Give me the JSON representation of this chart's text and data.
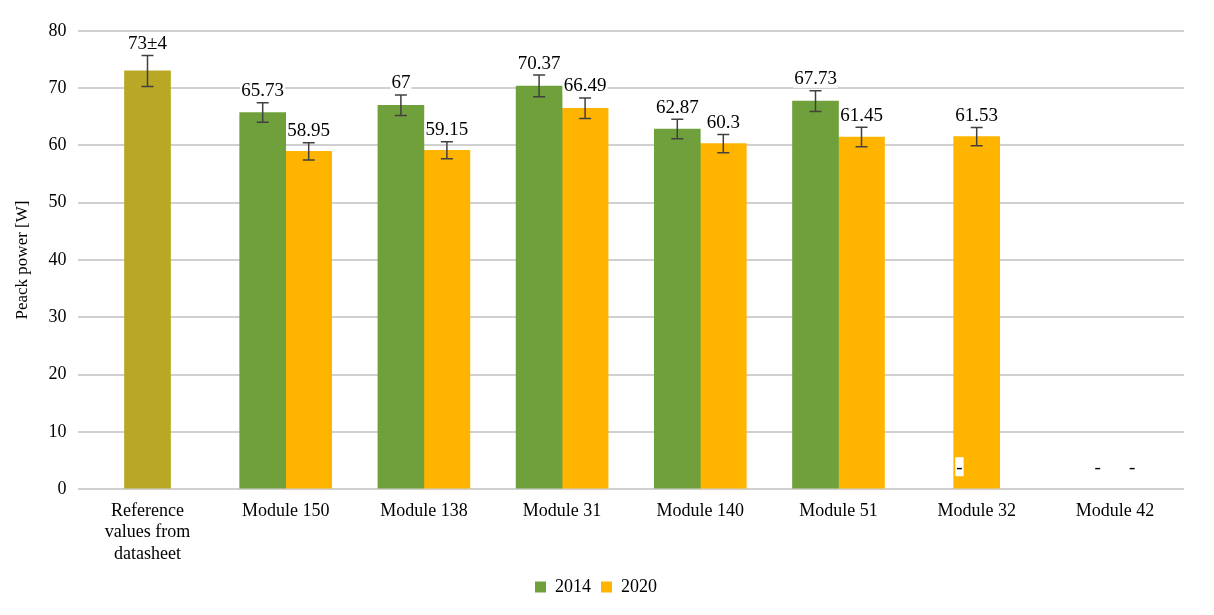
{
  "chart_data": {
    "type": "bar",
    "ylabel": "Peack power [W]",
    "categories": [
      "Reference values from datasheet",
      "Module 150",
      "Module 138",
      "Module 31",
      "Module 140",
      "Module 51",
      "Module 32",
      "Module 42"
    ],
    "series": [
      {
        "color": "#b9a726",
        "values": [
          73,
          null,
          null,
          null,
          null,
          null,
          null,
          null
        ],
        "errors": [
          2.7,
          null,
          null,
          null,
          null,
          null,
          null,
          null
        ],
        "value_labels": [
          "73±4",
          null,
          null,
          null,
          null,
          null,
          null,
          null
        ]
      },
      {
        "name": "2014",
        "color": "#70a03c",
        "values": [
          null,
          65.73,
          67,
          70.37,
          62.87,
          67.73,
          null,
          null
        ],
        "errors": [
          null,
          1.7,
          1.8,
          1.9,
          1.7,
          1.8,
          null,
          null
        ],
        "value_labels": [
          null,
          "65.73",
          "67",
          "70.37",
          "62.87",
          "67.73",
          "-",
          "-"
        ]
      },
      {
        "name": "2020",
        "color": "#ffb400",
        "values": [
          null,
          58.95,
          59.15,
          66.49,
          60.3,
          61.45,
          61.53,
          null
        ],
        "errors": [
          null,
          1.5,
          1.5,
          1.8,
          1.6,
          1.7,
          1.6,
          null
        ],
        "value_labels": [
          null,
          "58.95",
          "59.15",
          "66.49",
          "60.3",
          "61.45",
          "61.53",
          "-"
        ]
      }
    ],
    "ylim": [
      0,
      80
    ],
    "yticks": [
      0,
      10,
      20,
      30,
      40,
      50,
      60,
      70,
      80
    ],
    "grid": "y",
    "legend": "bottom"
  }
}
